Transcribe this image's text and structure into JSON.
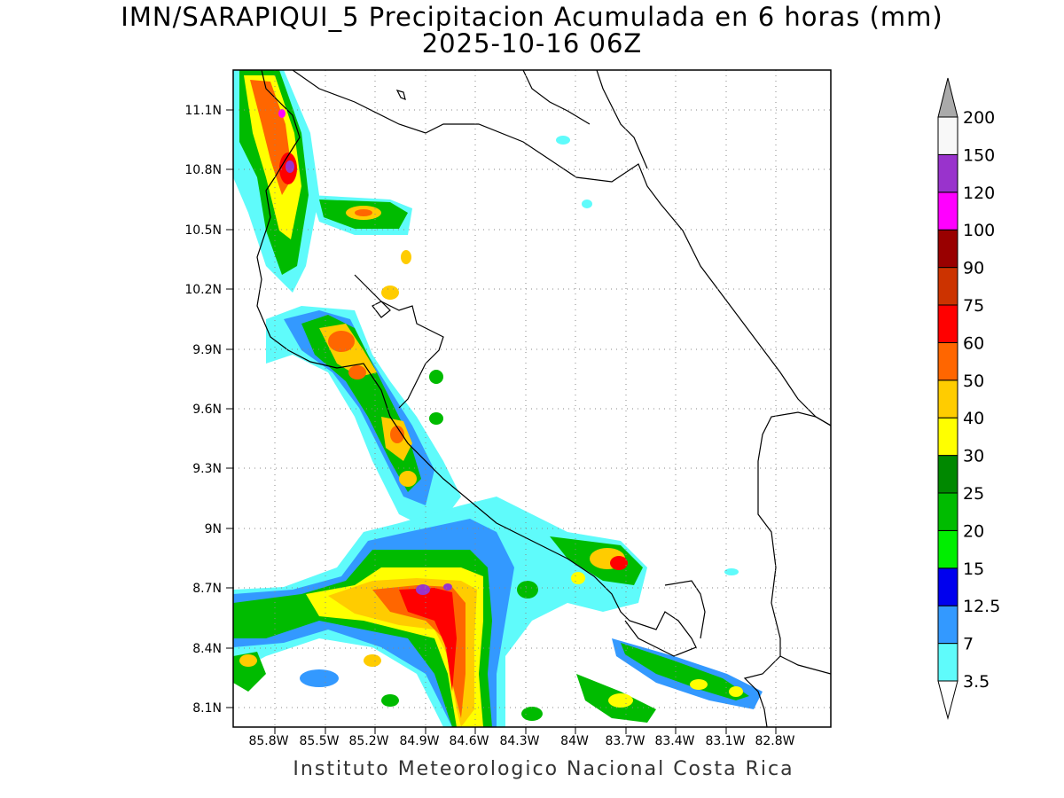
{
  "title": {
    "line1": "IMN/SARAPIQUI_5 Precipitacion Acumulada en 6 horas (mm)",
    "line2": "2025-10-16 06Z"
  },
  "footer": "Instituto Meteorologico Nacional Costa Rica",
  "map": {
    "lat_ticks": [
      "11.1N",
      "10.8N",
      "10.5N",
      "10.2N",
      "9.9N",
      "9.6N",
      "9.3N",
      "9N",
      "8.7N",
      "8.4N",
      "8.1N"
    ],
    "lon_ticks": [
      "85.8W",
      "85.5W",
      "85.2W",
      "84.9W",
      "84.6W",
      "84.3W",
      "84W",
      "83.7W",
      "83.4W",
      "83.1W",
      "82.8W"
    ],
    "gridlines": "dotted"
  },
  "colorbar": {
    "levels": [
      "3.5",
      "7",
      "12.5",
      "15",
      "20",
      "25",
      "30",
      "40",
      "50",
      "60",
      "75",
      "90",
      "100",
      "120",
      "150",
      "200"
    ],
    "colors": [
      "#5ffbfb",
      "#3399ff",
      "#0000ee",
      "#00ee00",
      "#00bb00",
      "#008800",
      "#ffff00",
      "#ffcc00",
      "#ff6600",
      "#ff0000",
      "#cc3300",
      "#990000",
      "#ff00ff",
      "#9933cc",
      "#f8f8f8",
      "#aaaaaa"
    ]
  }
}
